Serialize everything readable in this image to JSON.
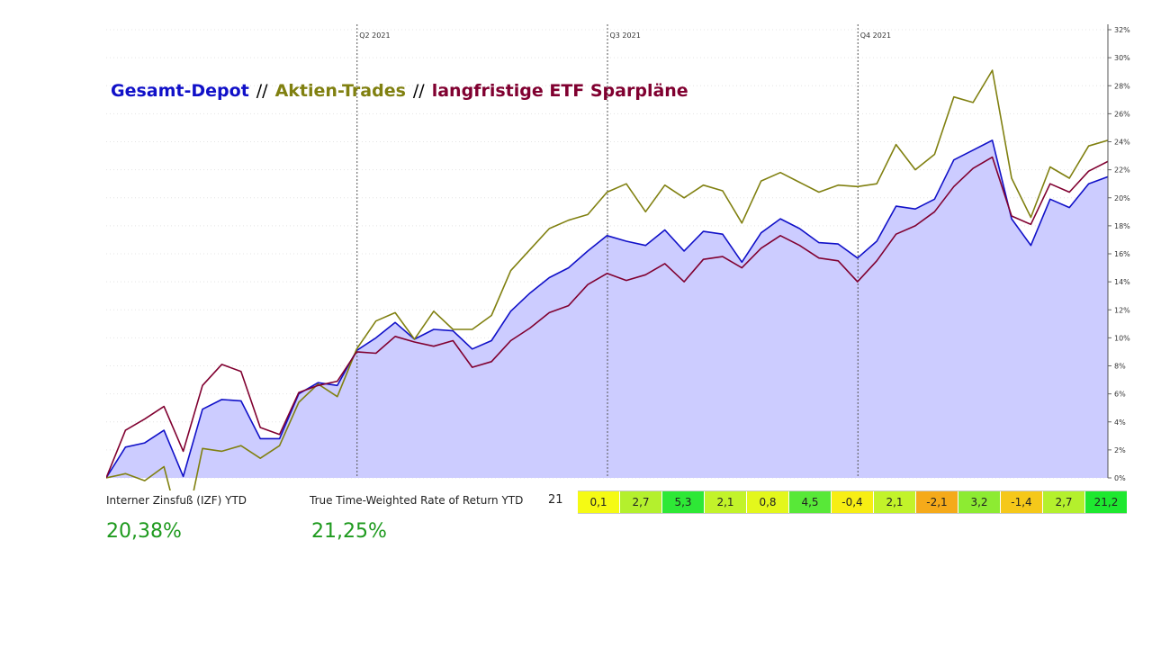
{
  "legend": {
    "total": {
      "label": "Gesamt-Depot",
      "color": "#1010c8"
    },
    "stocks": {
      "label": "Aktien-Trades",
      "color": "#808010"
    },
    "etf": {
      "label": "langfristige ETF Sparpläne",
      "color": "#800030"
    },
    "separator": "//"
  },
  "chart_data": {
    "type": "area",
    "ylim": [
      0,
      32
    ],
    "yticks": [
      "0%",
      "2%",
      "4%",
      "6%",
      "8%",
      "10%",
      "12%",
      "14%",
      "16%",
      "18%",
      "20%",
      "22%",
      "24%",
      "26%",
      "28%",
      "30%",
      "32%"
    ],
    "quarter_markers": [
      {
        "label": "Q2 2021",
        "index": 13
      },
      {
        "label": "Q3 2021",
        "index": 26
      },
      {
        "label": "Q4 2021",
        "index": 39
      }
    ],
    "x_count": 52,
    "series": [
      {
        "name": "Gesamt-Depot",
        "style": "area",
        "color": "#1010c8",
        "fill": "#ccccff",
        "values": [
          0.0,
          2.2,
          2.5,
          3.4,
          0.1,
          4.9,
          5.6,
          5.5,
          2.8,
          2.8,
          6.0,
          6.8,
          6.6,
          9.1,
          10.0,
          11.1,
          9.9,
          10.6,
          10.5,
          9.2,
          9.8,
          11.9,
          13.2,
          14.3,
          15.0,
          16.2,
          17.3,
          16.9,
          16.6,
          17.7,
          16.2,
          17.6,
          17.4,
          15.4,
          17.5,
          18.5,
          17.8,
          16.8,
          16.7,
          15.7,
          16.9,
          19.4,
          19.2,
          19.9,
          22.7,
          23.4,
          24.1,
          18.5,
          16.6,
          19.9,
          19.3,
          21.0,
          21.5
        ]
      },
      {
        "name": "Aktien-Trades",
        "style": "line",
        "color": "#808010",
        "values": [
          0.0,
          0.3,
          -0.2,
          0.8,
          -4.5,
          2.1,
          1.9,
          2.3,
          1.4,
          2.3,
          5.4,
          6.7,
          5.8,
          9.2,
          11.2,
          11.8,
          9.9,
          11.9,
          10.6,
          10.6,
          11.6,
          14.8,
          16.3,
          17.8,
          18.4,
          18.8,
          20.4,
          21.0,
          19.0,
          20.9,
          20.0,
          20.9,
          20.5,
          18.2,
          21.2,
          21.8,
          21.1,
          20.4,
          20.9,
          20.8,
          21.0,
          23.8,
          22.0,
          23.1,
          27.2,
          26.8,
          29.1,
          21.4,
          18.6,
          22.2,
          21.4,
          23.7,
          24.1
        ]
      },
      {
        "name": "langfristige ETF Sparpläne",
        "style": "line",
        "color": "#800030",
        "values": [
          0.0,
          3.4,
          4.2,
          5.1,
          1.9,
          6.6,
          8.1,
          7.6,
          3.6,
          3.1,
          6.1,
          6.6,
          6.9,
          9.0,
          8.9,
          10.1,
          9.7,
          9.4,
          9.8,
          7.9,
          8.3,
          9.8,
          10.7,
          11.8,
          12.3,
          13.8,
          14.6,
          14.1,
          14.5,
          15.3,
          14.0,
          15.6,
          15.8,
          15.0,
          16.4,
          17.3,
          16.6,
          15.7,
          15.5,
          14.0,
          15.5,
          17.4,
          18.0,
          19.0,
          20.8,
          22.1,
          22.9,
          18.7,
          18.1,
          21.0,
          20.4,
          21.9,
          22.6
        ]
      }
    ]
  },
  "kpis": {
    "izf": {
      "label": "Interner Zinsfuß (IZF) YTD",
      "value": "20,38%"
    },
    "ttwror": {
      "label": "True Time-Weighted Rate of Return YTD",
      "value": "21,25%"
    }
  },
  "monthly": {
    "year": "21",
    "cells": [
      {
        "value": "0,1",
        "color": "#f5fa14"
      },
      {
        "value": "2,7",
        "color": "#b4f02d"
      },
      {
        "value": "5,3",
        "color": "#2ee836"
      },
      {
        "value": "2,1",
        "color": "#c2f32a"
      },
      {
        "value": "0,8",
        "color": "#e3f71c"
      },
      {
        "value": "4,5",
        "color": "#58e838"
      },
      {
        "value": "-0,4",
        "color": "#f7ee14"
      },
      {
        "value": "2,1",
        "color": "#c2f32a"
      },
      {
        "value": "-2,1",
        "color": "#f5aa1a"
      },
      {
        "value": "3,2",
        "color": "#8deb32"
      },
      {
        "value": "-1,4",
        "color": "#f5c81a"
      },
      {
        "value": "2,7",
        "color": "#b4f02d"
      },
      {
        "value": "21,2",
        "color": "#1ee830"
      }
    ]
  }
}
